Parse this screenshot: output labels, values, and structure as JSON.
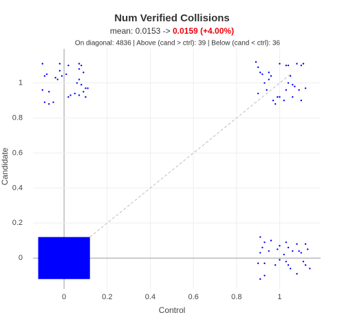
{
  "chart_data": {
    "type": "scatter",
    "title": "Num Verified Collisions",
    "subtitle_prefix": "mean: 0.0153 ->",
    "subtitle_highlight": "0.0159 (+4.00%)",
    "summary": "On diagonal: 4836 | Above (cand > ctrl): 39 | Below (cand < ctrl): 36",
    "x_label": "Control",
    "y_label": "Candidate",
    "xlim": [
      -0.144,
      1.19
    ],
    "ylim": [
      -0.176,
      1.195
    ],
    "xticks": [
      0,
      0.2,
      0.4,
      0.6,
      0.8,
      1
    ],
    "yticks": [
      0,
      0.2,
      0.4,
      0.6,
      0.8,
      1
    ],
    "grid": true,
    "color": "#0000ff",
    "highlight_color": "#e8000b",
    "diagonal": [
      0.12,
      1.05
    ],
    "dense_region": {
      "xlim": [
        -0.12,
        0.12
      ],
      "ylim": [
        -0.12,
        0.12
      ]
    },
    "series": [
      {
        "x": [
          -0.1,
          -0.09,
          -0.08,
          -0.1,
          -0.07,
          -0.09,
          -0.07,
          -0.05,
          -0.04,
          -0.03,
          -0.02,
          -0.02,
          -0.01,
          0.01,
          0.02,
          0.03,
          0.02,
          0.07,
          0.08,
          0.07,
          0.09,
          0.07,
          0.06,
          0.08,
          0.1,
          0.09,
          0.07,
          0.1,
          0.11,
          0.05
        ],
        "y": [
          1.11,
          1.04,
          1.05,
          0.96,
          0.95,
          0.89,
          0.88,
          0.89,
          1.03,
          1.02,
          1.07,
          1.11,
          1.04,
          1.05,
          0.92,
          0.93,
          1.1,
          1.11,
          1.1,
          1.08,
          1.06,
          1.02,
          1.0,
          0.99,
          0.97,
          0.95,
          0.93,
          0.92,
          0.97,
          0.94
        ]
      },
      {
        "x": [
          0.89,
          0.9,
          0.91,
          0.92,
          0.95,
          0.96,
          0.95,
          0.93,
          0.9,
          0.94,
          0.97,
          0.98,
          0.99,
          1.0,
          1.0,
          1.03,
          1.04,
          1.05,
          1.04,
          1.06,
          1.03,
          1.07,
          1.09,
          1.1,
          1.08,
          1.1,
          1.11,
          1.12,
          1.02,
          1.06
        ],
        "y": [
          1.12,
          1.09,
          1.06,
          1.05,
          1.06,
          1.04,
          1.02,
          1.0,
          0.94,
          0.96,
          0.9,
          0.88,
          0.92,
          0.92,
          1.11,
          1.1,
          1.1,
          1.04,
          1.0,
          0.99,
          0.96,
          0.98,
          0.96,
          0.9,
          1.11,
          1.1,
          1.11,
          0.97,
          0.9,
          0.92
        ]
      },
      {
        "x": [
          0.91,
          0.93,
          0.92,
          0.91,
          0.96,
          0.95,
          0.93,
          0.9,
          0.93,
          0.91,
          0.99,
          0.98,
          1.0,
          1.03,
          1.04,
          1.06,
          1.02,
          1.0,
          1.03,
          1.04,
          1.05,
          1.08,
          1.09,
          1.1,
          1.12,
          1.13,
          1.11,
          1.12,
          1.14,
          1.08
        ],
        "y": [
          0.12,
          0.09,
          0.06,
          0.03,
          0.1,
          0.04,
          -0.03,
          -0.03,
          -0.1,
          -0.12,
          0.05,
          -0.04,
          0.07,
          0.09,
          0.06,
          0.04,
          0.02,
          -0.01,
          -0.02,
          -0.04,
          -0.06,
          0.08,
          0.04,
          0.03,
          0.08,
          0.05,
          -0.02,
          -0.04,
          -0.06,
          -0.09
        ]
      }
    ]
  }
}
